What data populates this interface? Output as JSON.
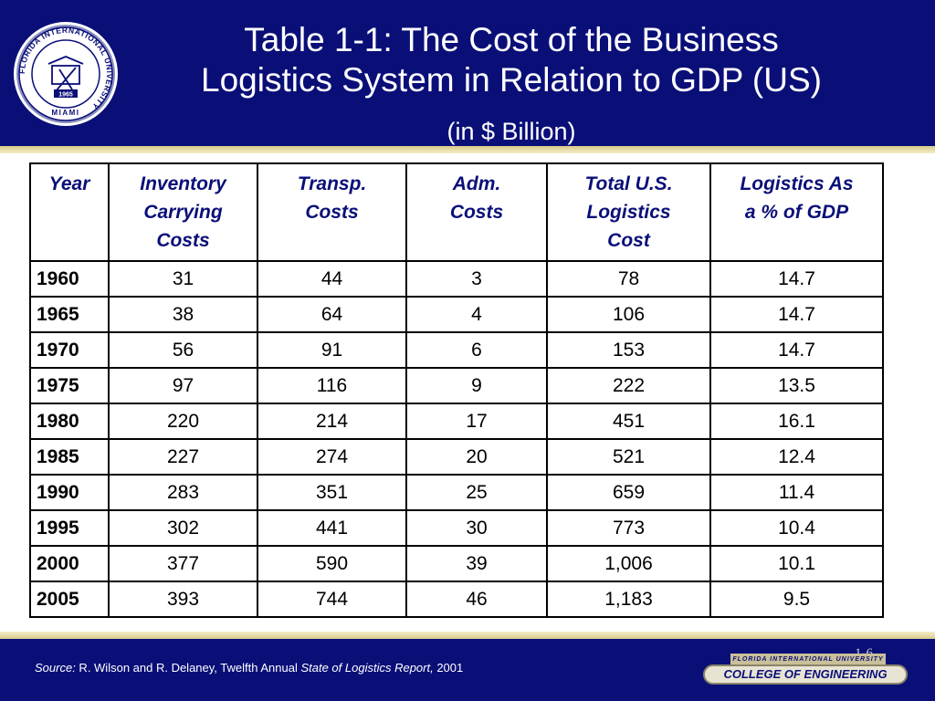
{
  "slide": {
    "title_line1": "Table 1-1:  The Cost of the Business",
    "title_line2": "Logistics System in Relation to GDP (US)",
    "subtitle": "(in $ Billion)",
    "slide_number": "1-6"
  },
  "seal": {
    "ring_text": "FLORIDA INTERNATIONAL UNIVERSITY",
    "bottom_text": "MIAMI",
    "year": "1965"
  },
  "table": {
    "headers": [
      [
        "Year"
      ],
      [
        "Inventory",
        "Carrying",
        "Costs"
      ],
      [
        "Transp.",
        "Costs"
      ],
      [
        "Adm.",
        "Costs"
      ],
      [
        "Total U.S.",
        "Logistics",
        "Cost"
      ],
      [
        "Logistics As",
        "a % of GDP"
      ]
    ],
    "rows": [
      [
        "1960",
        "31",
        "44",
        "3",
        "78",
        "14.7"
      ],
      [
        "1965",
        "38",
        "64",
        "4",
        "106",
        "14.7"
      ],
      [
        "1970",
        "56",
        "91",
        "6",
        "153",
        "14.7"
      ],
      [
        "1975",
        "97",
        "116",
        "9",
        "222",
        "13.5"
      ],
      [
        "1980",
        "220",
        "214",
        "17",
        "451",
        "16.1"
      ],
      [
        "1985",
        "227",
        "274",
        "20",
        "521",
        "12.4"
      ],
      [
        "1990",
        "283",
        "351",
        "25",
        "659",
        "11.4"
      ],
      [
        "1995",
        "302",
        "441",
        "30",
        "773",
        "10.4"
      ],
      [
        "2000",
        "377",
        "590",
        "39",
        "1,006",
        "10.1"
      ],
      [
        "2005",
        "393",
        "744",
        "46",
        "1,183",
        "9.5"
      ]
    ]
  },
  "footer": {
    "source_label": "Source:",
    "source_authors": " R. Wilson and R. Delaney, Twelfth Annual ",
    "source_report": "State of Logistics Report,",
    "source_year": " 2001",
    "badge_top": "FLORIDA INTERNATIONAL UNIVERSITY",
    "badge_main": "COLLEGE OF ENGINEERING"
  },
  "colors": {
    "navy": "#0a0f78",
    "gold": "#d8c98a"
  }
}
